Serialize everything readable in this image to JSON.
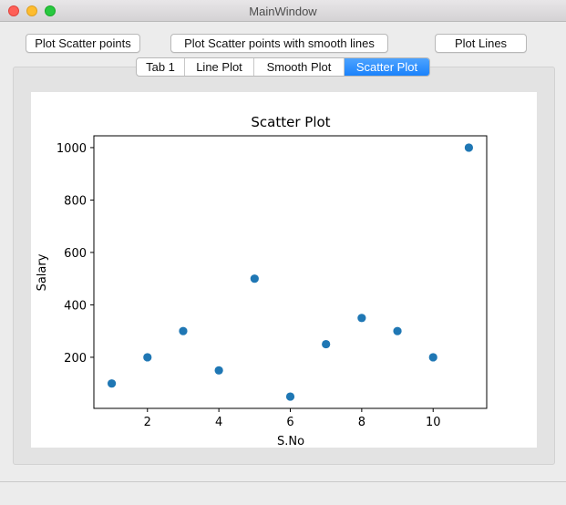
{
  "window": {
    "title": "MainWindow"
  },
  "toolbar": {
    "btn_scatter": "Plot Scatter points",
    "btn_smooth": "Plot Scatter points with smooth lines",
    "btn_lines": "Plot Lines"
  },
  "tabs": [
    {
      "label": "Tab 1",
      "active": false
    },
    {
      "label": "Line Plot",
      "active": false
    },
    {
      "label": "Smooth Plot",
      "active": false
    },
    {
      "label": "Scatter Plot",
      "active": true
    }
  ],
  "chart_data": {
    "type": "scatter",
    "title": "Scatter Plot",
    "xlabel": "S.No",
    "ylabel": "Salary",
    "x": [
      1,
      2,
      3,
      4,
      5,
      6,
      7,
      8,
      9,
      10,
      11
    ],
    "y": [
      100,
      200,
      300,
      150,
      500,
      50,
      250,
      350,
      300,
      200,
      1000
    ],
    "xlim": [
      0.5,
      11.5
    ],
    "ylim": [
      5,
      1045
    ],
    "xticks": [
      2,
      4,
      6,
      8,
      10
    ],
    "yticks": [
      200,
      400,
      600,
      800,
      1000
    ],
    "grid": false,
    "marker_color": "#1f77b4"
  }
}
